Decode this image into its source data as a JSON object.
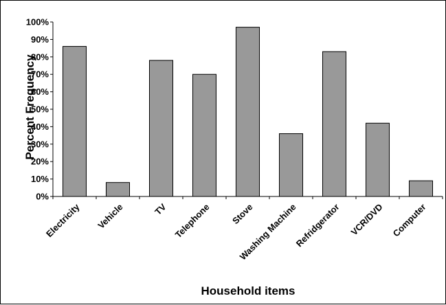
{
  "chart_data": {
    "type": "bar",
    "title": "",
    "xlabel": "Household items",
    "ylabel": "Percent Frequency",
    "categories": [
      "Electricity",
      "Vehicle",
      "TV",
      "Telephone",
      "Stove",
      "Washing Machine",
      "Refridgerator",
      "VCR/DVD",
      "Computer"
    ],
    "values": [
      86,
      8,
      78,
      70,
      97,
      36,
      83,
      42,
      9
    ],
    "ylim": [
      0,
      100
    ],
    "yticks": [
      0,
      10,
      20,
      30,
      40,
      50,
      60,
      70,
      80,
      90,
      100
    ],
    "ytick_labels": [
      "0%",
      "10%",
      "20%",
      "30%",
      "40%",
      "50%",
      "60%",
      "70%",
      "80%",
      "90%",
      "100%"
    ],
    "grid": false,
    "legend": "none",
    "colors": {
      "bar_fill": "#999999",
      "bar_stroke": "#000000"
    }
  }
}
